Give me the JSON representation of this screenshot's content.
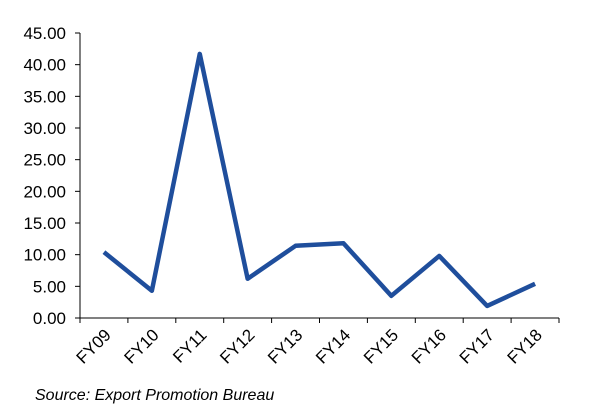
{
  "chart_data": {
    "type": "line",
    "categories": [
      "FY09",
      "FY10",
      "FY11",
      "FY12",
      "FY13",
      "FY14",
      "FY15",
      "FY16",
      "FY17",
      "FY18"
    ],
    "values": [
      10.4,
      4.3,
      41.7,
      6.2,
      11.4,
      11.8,
      3.5,
      9.8,
      1.9,
      5.4
    ],
    "color": "#1f4e9c",
    "ylim": [
      0,
      45
    ],
    "yticks": [
      {
        "value": 0,
        "label": "0.00"
      },
      {
        "value": 5,
        "label": "5.00"
      },
      {
        "value": 10,
        "label": "10.00"
      },
      {
        "value": 15,
        "label": "15.00"
      },
      {
        "value": 20,
        "label": "20.00"
      },
      {
        "value": 25,
        "label": "25.00"
      },
      {
        "value": 30,
        "label": "30.00"
      },
      {
        "value": 35,
        "label": "35.00"
      },
      {
        "value": 40,
        "label": "40.00"
      },
      {
        "value": 45,
        "label": "45.00"
      }
    ],
    "grid": false,
    "source": "Source: Export Promotion Bureau"
  }
}
